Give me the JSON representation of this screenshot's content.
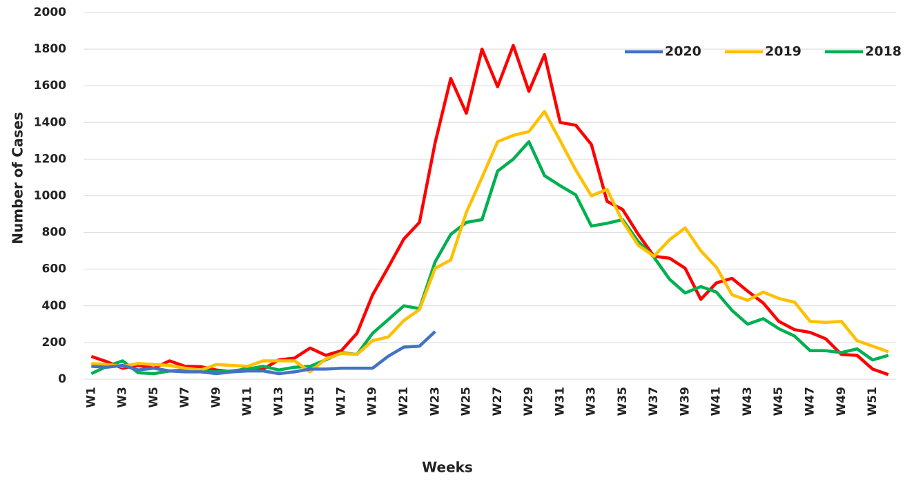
{
  "chart_data": {
    "type": "line",
    "x_label": "Weeks",
    "y_label": "Number of Cases",
    "categories": [
      "W1",
      null,
      "W3",
      null,
      "W5",
      null,
      "W7",
      null,
      "W9",
      null,
      "W11",
      null,
      "W13",
      null,
      "W15",
      null,
      "W17",
      null,
      "W19",
      null,
      "W21",
      null,
      "W23",
      null,
      "W25",
      null,
      "W27",
      null,
      "W29",
      null,
      "W31",
      null,
      "W33",
      null,
      "W35",
      null,
      "W37",
      null,
      "W39",
      null,
      "W41",
      null,
      "W43",
      null,
      "W45",
      null,
      "W47",
      null,
      "W49",
      null,
      "W51",
      null
    ],
    "series": [
      {
        "name": "2020",
        "color": "#4472c4",
        "values": [
          70,
          65,
          75,
          50,
          60,
          45,
          40,
          40,
          30,
          40,
          45,
          45,
          30,
          40,
          55,
          55,
          60,
          60,
          60,
          125,
          175,
          180,
          260,
          null,
          null,
          null,
          null,
          null,
          null,
          null,
          null,
          null,
          null,
          null,
          null,
          null,
          null,
          null,
          null,
          null,
          null,
          null,
          null,
          null,
          null,
          null,
          null,
          null,
          null,
          null,
          null,
          null
        ]
      },
      {
        "name": "2019",
        "color": "#ffc000",
        "values": [
          85,
          80,
          70,
          85,
          80,
          75,
          60,
          50,
          80,
          75,
          70,
          100,
          100,
          100,
          40,
          110,
          140,
          135,
          210,
          230,
          320,
          380,
          605,
          650,
          910,
          1100,
          1295,
          1330,
          1350,
          1460,
          1300,
          1140,
          1000,
          1035,
          860,
          730,
          670,
          760,
          825,
          700,
          610,
          460,
          430,
          475,
          440,
          420,
          315,
          310,
          315,
          210,
          180,
          150
        ]
      },
      {
        "name": "2018",
        "color": "#00b050",
        "values": [
          30,
          70,
          100,
          35,
          30,
          45,
          50,
          45,
          40,
          45,
          55,
          70,
          50,
          65,
          70,
          105,
          145,
          135,
          250,
          325,
          400,
          385,
          640,
          790,
          855,
          870,
          1135,
          1200,
          1295,
          1110,
          1055,
          1005,
          835,
          850,
          870,
          750,
          665,
          545,
          470,
          505,
          475,
          375,
          300,
          330,
          275,
          235,
          155,
          155,
          145,
          165,
          105,
          130
        ]
      },
      {
        "color": "#ff0000",
        "values": [
          124,
          95,
          60,
          75,
          60,
          100,
          70,
          68,
          50,
          40,
          60,
          55,
          105,
          115,
          170,
          130,
          155,
          250,
          460,
          610,
          765,
          855,
          1290,
          1640,
          1450,
          1800,
          1595,
          1820,
          1570,
          1770,
          1400,
          1385,
          1280,
          970,
          925,
          790,
          670,
          660,
          605,
          435,
          525,
          550,
          480,
          415,
          315,
          270,
          255,
          220,
          135,
          130,
          55,
          25
        ]
      }
    ],
    "ylim": [
      0,
      2000
    ],
    "yticks": [
      0,
      200,
      400,
      600,
      800,
      1000,
      1200,
      1400,
      1600,
      1800,
      2000
    ],
    "grid": true,
    "legend": "top-right"
  }
}
